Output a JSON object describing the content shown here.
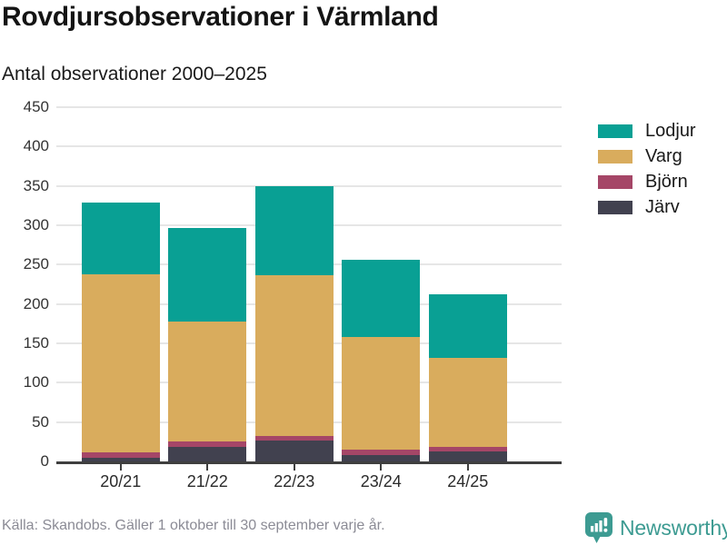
{
  "header": {
    "title": "Rovdjursobservationer i Värmland",
    "subtitle": "Antal observationer 2000–2025"
  },
  "chart_data": {
    "type": "bar",
    "stacked": true,
    "title": "Rovdjursobservationer i Värmland",
    "subtitle": "Antal observationer 2000–2025",
    "xlabel": "",
    "ylabel": "Antal observationer",
    "categories": [
      "20/21",
      "21/22",
      "22/23",
      "23/24",
      "24/25"
    ],
    "series": [
      {
        "name": "Järv",
        "color": "#41414f",
        "values": [
          5,
          19,
          27,
          8,
          13
        ]
      },
      {
        "name": "Björn",
        "color": "#a54667",
        "values": [
          6,
          6,
          5,
          7,
          5
        ]
      },
      {
        "name": "Varg",
        "color": "#d9ac5d",
        "values": [
          227,
          153,
          205,
          143,
          113
        ]
      },
      {
        "name": "Lodjur",
        "color": "#09a094",
        "values": [
          91,
          118,
          113,
          98,
          81
        ]
      }
    ],
    "totals": [
      329,
      296,
      350,
      256,
      212
    ],
    "ylim": [
      0,
      450
    ],
    "yticks": [
      0,
      50,
      100,
      150,
      200,
      250,
      300,
      350,
      400,
      450
    ],
    "grid": true,
    "legend": {
      "position": "right",
      "order": [
        "Lodjur",
        "Varg",
        "Björn",
        "Järv"
      ]
    }
  },
  "footer": {
    "source": "Källa: Skandobs. Gäller 1 oktober till 30 september varje år."
  },
  "branding": {
    "name": "Newsworthy",
    "color": "#3d9b92"
  },
  "colors": {
    "lodjur": "#09a094",
    "varg": "#d9ac5d",
    "bjorn": "#a54667",
    "jarv": "#41414f",
    "grid": "#e6e6e6",
    "axis": "#3f3f3f",
    "footer_text": "#8b8b95"
  }
}
